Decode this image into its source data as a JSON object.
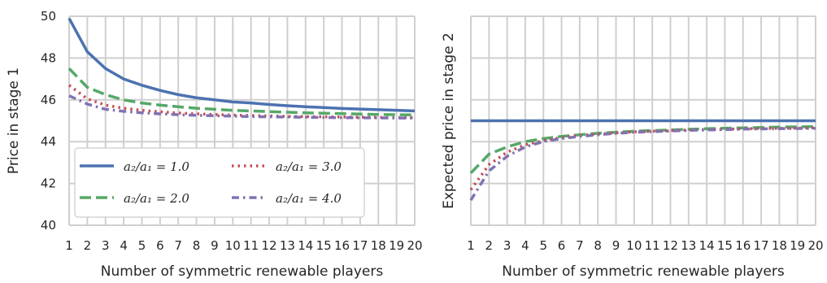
{
  "chart_data": [
    {
      "type": "line",
      "xlabel": "Number of symmetric renewable players",
      "ylabel": "Price in stage 1",
      "x": [
        1,
        2,
        3,
        4,
        5,
        6,
        7,
        8,
        9,
        10,
        11,
        12,
        13,
        14,
        15,
        16,
        17,
        18,
        19,
        20
      ],
      "xlim": [
        1,
        20
      ],
      "ylim": [
        40,
        50
      ],
      "yticks": [
        40,
        42,
        44,
        46,
        48,
        50
      ],
      "grid": true,
      "legend": "lower-left",
      "series": [
        {
          "name": "a2/a1 = 1.0",
          "legend_label": "a₂/a₁ = 1.0",
          "color": "#4c72b0",
          "style": "solid",
          "values": [
            49.9,
            48.3,
            47.5,
            47.0,
            46.7,
            46.45,
            46.25,
            46.1,
            46.0,
            45.9,
            45.85,
            45.78,
            45.72,
            45.67,
            45.63,
            45.59,
            45.56,
            45.53,
            45.5,
            45.47
          ]
        },
        {
          "name": "a2/a1 = 2.0",
          "legend_label": "a₂/a₁ = 2.0",
          "color": "#55a868",
          "style": "dashed",
          "values": [
            47.5,
            46.6,
            46.25,
            46.0,
            45.85,
            45.75,
            45.67,
            45.6,
            45.55,
            45.5,
            45.47,
            45.44,
            45.41,
            45.38,
            45.36,
            45.34,
            45.32,
            45.3,
            45.29,
            45.28
          ]
        },
        {
          "name": "a2/a1 = 3.0",
          "legend_label": "a₂/a₁ = 3.0",
          "color": "#c44e52",
          "style": "dotted",
          "values": [
            46.7,
            46.05,
            45.75,
            45.6,
            45.5,
            45.43,
            45.37,
            45.33,
            45.3,
            45.27,
            45.25,
            45.23,
            45.21,
            45.2,
            45.19,
            45.18,
            45.17,
            45.16,
            45.15,
            45.15
          ]
        },
        {
          "name": "a2/a1 = 4.0",
          "legend_label": "a₂/a₁ = 4.0",
          "color": "#8172b2",
          "style": "dashdot",
          "values": [
            46.2,
            45.8,
            45.55,
            45.45,
            45.38,
            45.33,
            45.29,
            45.26,
            45.24,
            45.22,
            45.2,
            45.19,
            45.18,
            45.17,
            45.16,
            45.15,
            45.14,
            45.14,
            45.13,
            45.13
          ]
        }
      ]
    },
    {
      "type": "line",
      "xlabel": "Number of symmetric renewable players",
      "ylabel": "Expected price in stage 2",
      "x": [
        1,
        2,
        3,
        4,
        5,
        6,
        7,
        8,
        9,
        10,
        11,
        12,
        13,
        14,
        15,
        16,
        17,
        18,
        19,
        20
      ],
      "xlim": [
        1,
        20
      ],
      "ylim": [
        40,
        50
      ],
      "yticks": [
        40,
        42,
        44,
        46,
        48,
        50
      ],
      "show_ytick_labels": false,
      "grid": true,
      "series": [
        {
          "name": "a2/a1 = 1.0",
          "color": "#4c72b0",
          "style": "solid",
          "values": [
            45.0,
            45.0,
            45.0,
            45.0,
            45.0,
            45.0,
            45.0,
            45.0,
            45.0,
            45.0,
            45.0,
            45.0,
            45.0,
            45.0,
            45.0,
            45.0,
            45.0,
            45.0,
            45.0,
            45.0
          ]
        },
        {
          "name": "a2/a1 = 2.0",
          "color": "#55a868",
          "style": "dashed",
          "values": [
            42.5,
            43.4,
            43.75,
            44.0,
            44.15,
            44.25,
            44.33,
            44.4,
            44.45,
            44.5,
            44.53,
            44.56,
            44.59,
            44.62,
            44.64,
            44.66,
            44.68,
            44.7,
            44.71,
            44.72
          ]
        },
        {
          "name": "a2/a1 = 3.0",
          "color": "#c44e52",
          "style": "dotted",
          "values": [
            41.7,
            42.9,
            43.5,
            43.85,
            44.05,
            44.2,
            44.3,
            44.37,
            44.42,
            44.47,
            44.5,
            44.53,
            44.56,
            44.58,
            44.6,
            44.62,
            44.63,
            44.64,
            44.65,
            44.66
          ]
        },
        {
          "name": "a2/a1 = 4.0",
          "color": "#8172b2",
          "style": "dashdot",
          "values": [
            41.2,
            42.6,
            43.3,
            43.75,
            44.0,
            44.15,
            44.25,
            44.33,
            44.4,
            44.45,
            44.48,
            44.51,
            44.54,
            44.56,
            44.58,
            44.6,
            44.61,
            44.62,
            44.63,
            44.64
          ]
        }
      ]
    }
  ]
}
